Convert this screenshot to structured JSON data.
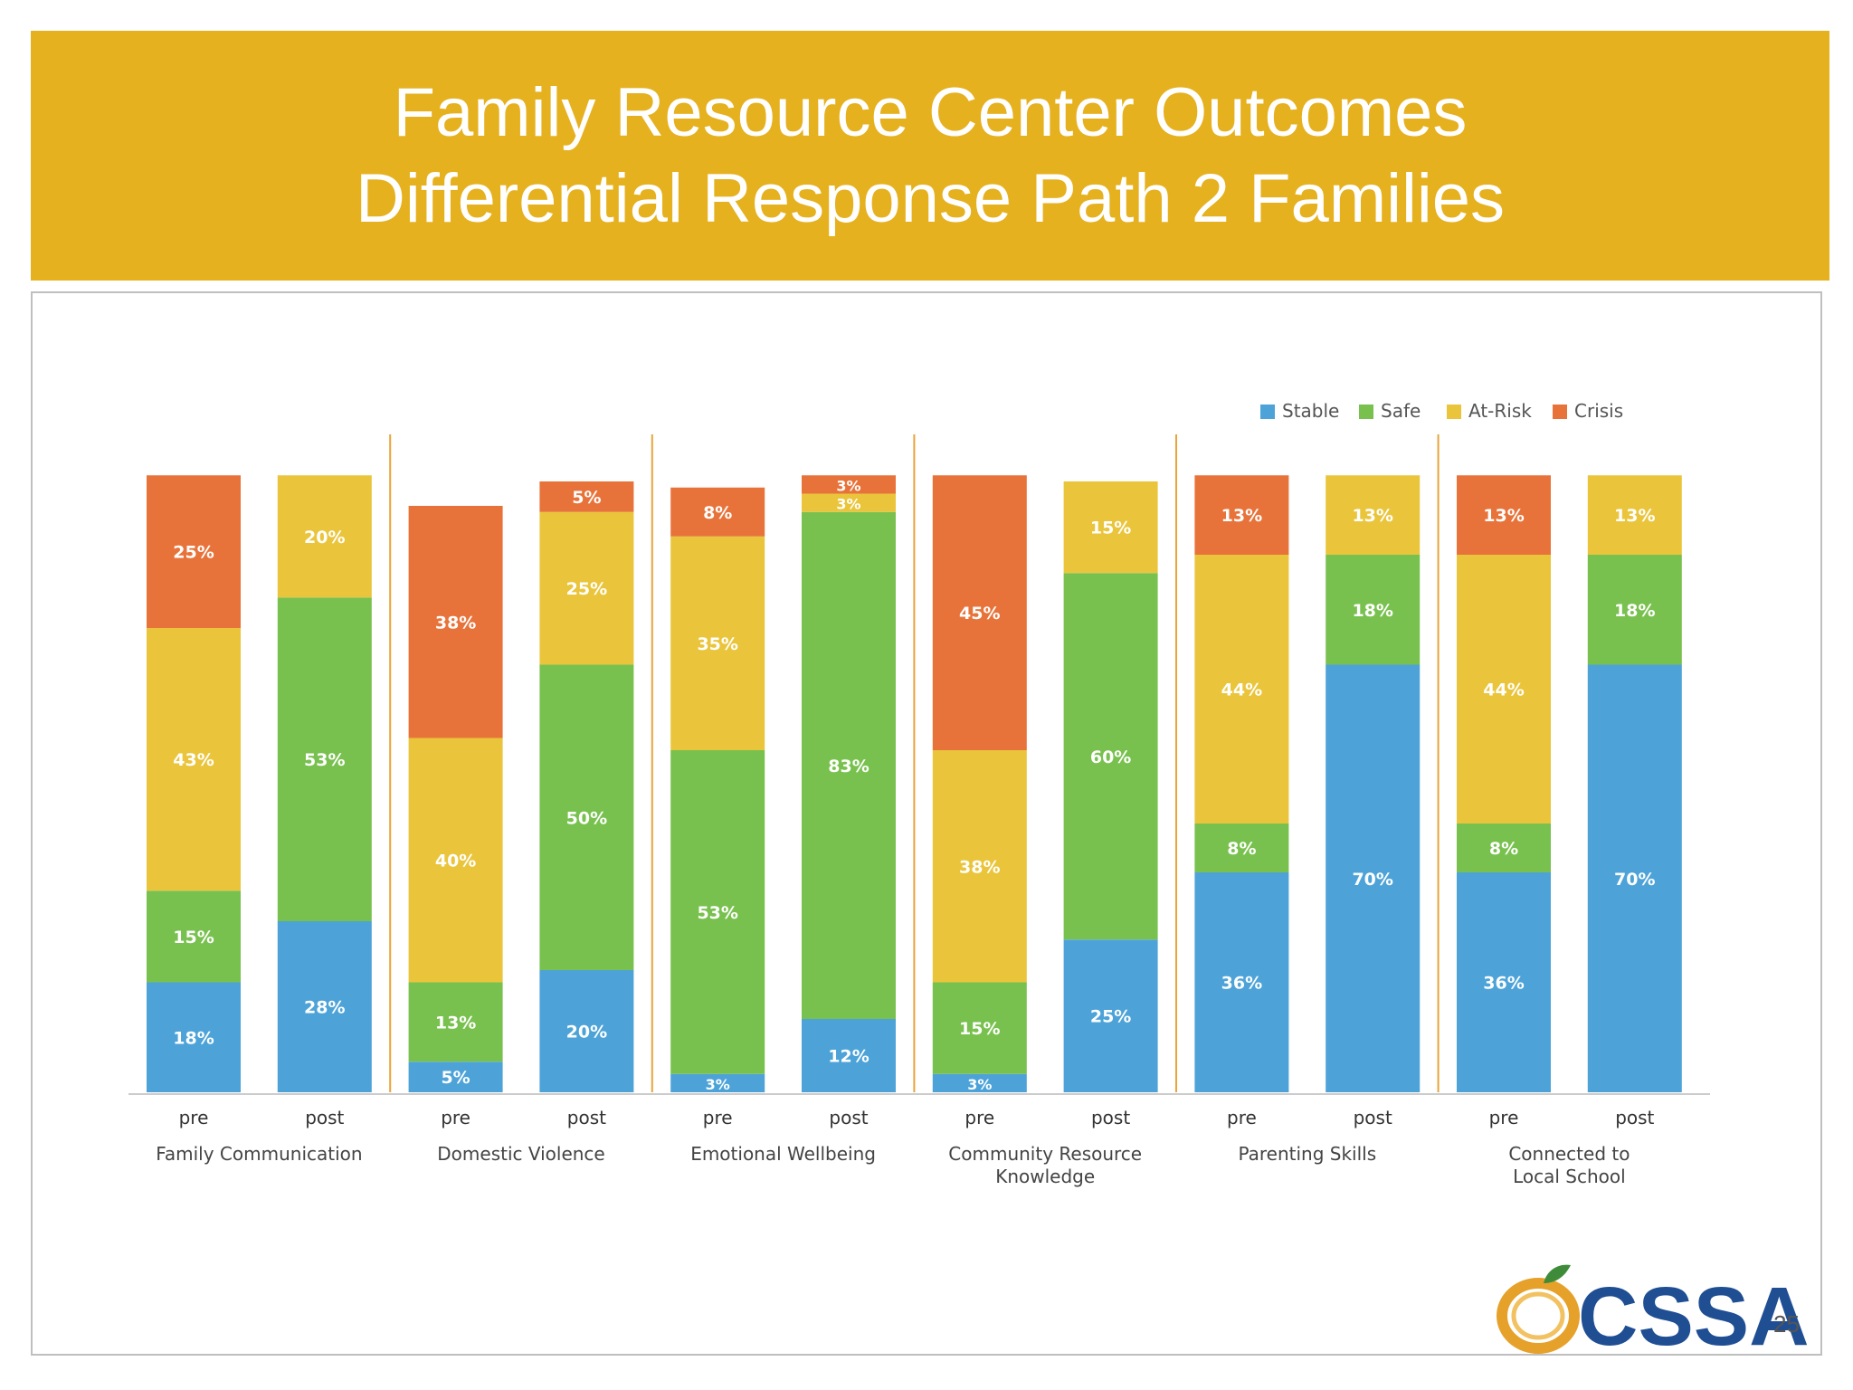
{
  "slide": {
    "title_line1": "Family Resource Center Outcomes",
    "title_line2": "Differential Response Path 2 Families",
    "page_number": "25",
    "logo_text": "CSSA"
  },
  "colors": {
    "banner": "#E6B11F",
    "Stable": "#4DA3D8",
    "Safe": "#79C14F",
    "At-Risk": "#EAC53C",
    "Crisis": "#E8733A"
  },
  "chart_data": {
    "type": "bar",
    "stacked": true,
    "legend": [
      "Stable",
      "Safe",
      "At-Risk",
      "Crisis"
    ],
    "legend_position": "top-right",
    "grid": false,
    "ylim": [
      0,
      100
    ],
    "groups": [
      {
        "label": "Family Communication",
        "bars": [
          {
            "label": "pre",
            "values": {
              "Stable": 18,
              "Safe": 15,
              "At-Risk": 43,
              "Crisis": 25
            }
          },
          {
            "label": "post",
            "values": {
              "Stable": 28,
              "Safe": 53,
              "At-Risk": 20,
              "Crisis": 0
            }
          }
        ]
      },
      {
        "label": "Domestic Violence",
        "bars": [
          {
            "label": "pre",
            "values": {
              "Stable": 5,
              "Safe": 13,
              "At-Risk": 40,
              "Crisis": 38
            }
          },
          {
            "label": "post",
            "values": {
              "Stable": 20,
              "Safe": 50,
              "At-Risk": 25,
              "Crisis": 5
            }
          }
        ]
      },
      {
        "label": "Emotional Wellbeing",
        "bars": [
          {
            "label": "pre",
            "values": {
              "Stable": 3,
              "Safe": 53,
              "At-Risk": 35,
              "Crisis": 8
            }
          },
          {
            "label": "post",
            "values": {
              "Stable": 12,
              "Safe": 83,
              "At-Risk": 3,
              "Crisis": 3
            }
          }
        ]
      },
      {
        "label": "Community Resource Knowledge",
        "bars": [
          {
            "label": "pre",
            "values": {
              "Stable": 3,
              "Safe": 15,
              "At-Risk": 38,
              "Crisis": 45
            }
          },
          {
            "label": "post",
            "values": {
              "Stable": 25,
              "Safe": 60,
              "At-Risk": 15,
              "Crisis": 0
            }
          }
        ]
      },
      {
        "label": "Parenting Skills",
        "bars": [
          {
            "label": "pre",
            "values": {
              "Stable": 36,
              "Safe": 8,
              "At-Risk": 44,
              "Crisis": 13
            }
          },
          {
            "label": "post",
            "values": {
              "Stable": 70,
              "Safe": 18,
              "At-Risk": 13,
              "Crisis": 0
            }
          }
        ]
      },
      {
        "label": "Connected to Local School",
        "bars": [
          {
            "label": "pre",
            "values": {
              "Stable": 36,
              "Safe": 8,
              "At-Risk": 44,
              "Crisis": 13
            }
          },
          {
            "label": "post",
            "values": {
              "Stable": 70,
              "Safe": 18,
              "At-Risk": 13,
              "Crisis": 0
            }
          }
        ]
      }
    ]
  }
}
